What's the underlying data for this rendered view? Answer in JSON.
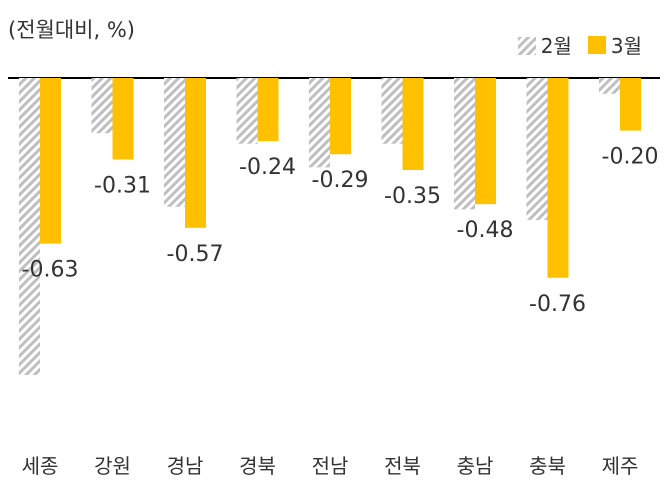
{
  "unit_label": "(전월대비, %)",
  "chart_data": {
    "type": "bar",
    "title": "",
    "unit": "(전월대비, %)",
    "xlabel": "",
    "ylabel": "",
    "categories": [
      "세종",
      "강원",
      "경남",
      "경북",
      "전남",
      "전북",
      "충남",
      "충북",
      "제주"
    ],
    "series": [
      {
        "name": "2월",
        "color": "#bfbfbf",
        "pattern": "diagonal-hatch",
        "values": [
          -1.13,
          -0.21,
          -0.49,
          -0.25,
          -0.34,
          -0.25,
          -0.5,
          -0.54,
          -0.06
        ]
      },
      {
        "name": "3월",
        "color": "#ffc000",
        "pattern": "solid",
        "values": [
          -0.63,
          -0.31,
          -0.57,
          -0.24,
          -0.29,
          -0.35,
          -0.48,
          -0.76,
          -0.2
        ]
      }
    ],
    "data_labels": [
      "-0.63",
      "-0.31",
      "-0.57",
      "-0.24",
      "-0.29",
      "-0.35",
      "-0.48",
      "-0.76",
      "-0.20"
    ],
    "ylim": [
      -1.13,
      0
    ],
    "grid": false,
    "legend": "top-right"
  }
}
